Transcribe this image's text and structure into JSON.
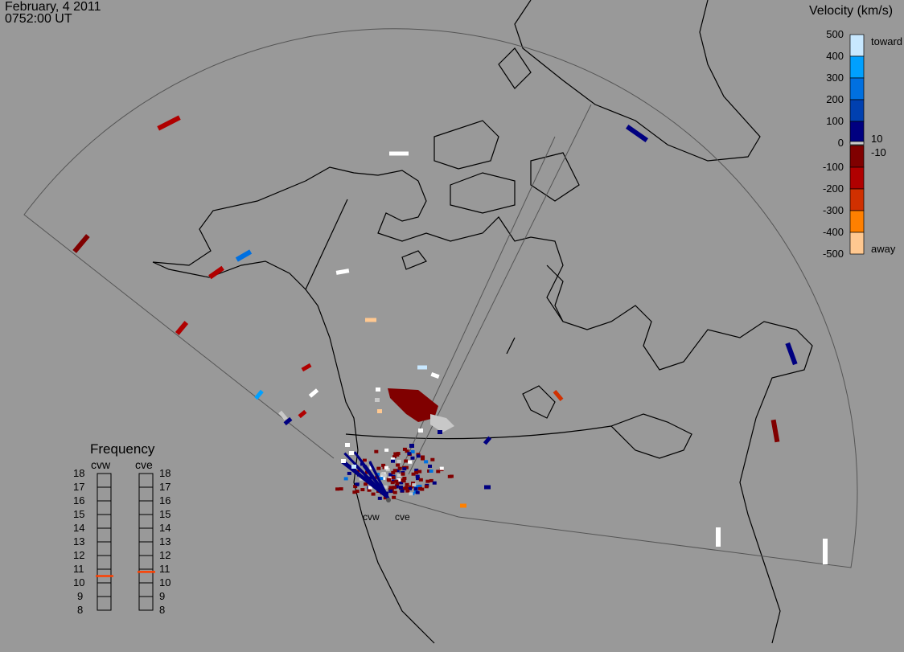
{
  "header": {
    "date": "February, 4 2011",
    "time": "0752:00 UT"
  },
  "velocity_scale": {
    "title": "Velocity (km/s)",
    "ticks": [
      "500",
      "400",
      "300",
      "200",
      "100",
      "0",
      "-100",
      "-200",
      "-300",
      "-400",
      "-500"
    ],
    "toward_label": "toward",
    "away_label": "away",
    "threshold_pos": "10",
    "threshold_neg": "-10",
    "colors_toward": [
      "#c8e8ff",
      "#00a0ff",
      "#0070e0",
      "#0040b0",
      "#000080"
    ],
    "colors_away": [
      "#800000",
      "#b00000",
      "#d03000",
      "#ff8000",
      "#ffc890"
    ],
    "ground_scatter_color": "#c8c8c8"
  },
  "frequency": {
    "title": "Frequency",
    "radars": [
      {
        "name": "cvw",
        "value_mhz": 10.5
      },
      {
        "name": "cve",
        "value_mhz": 10.8
      }
    ],
    "ticks": [
      "18",
      "17",
      "16",
      "15",
      "14",
      "13",
      "12",
      "11",
      "10",
      "9",
      "8"
    ],
    "range_mhz": [
      8,
      18
    ],
    "marker_color": "#ff4000"
  },
  "map": {
    "radar_labels": [
      "cvw",
      "cve"
    ]
  }
}
